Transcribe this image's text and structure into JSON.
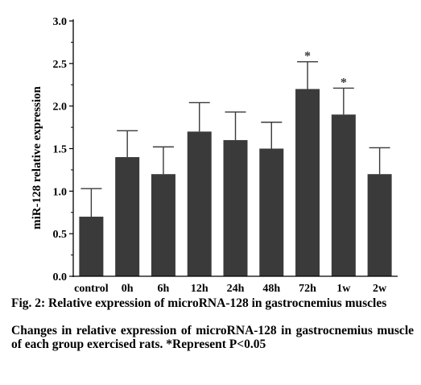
{
  "chart_data": {
    "type": "bar",
    "categories": [
      "control",
      "0h",
      "6h",
      "12h",
      "24h",
      "48h",
      "72h",
      "1w",
      "2w"
    ],
    "values": [
      0.7,
      1.4,
      1.2,
      1.7,
      1.6,
      1.5,
      2.2,
      1.9,
      1.2
    ],
    "error_upper": [
      1.03,
      1.71,
      1.52,
      2.04,
      1.93,
      1.81,
      2.52,
      2.21,
      1.51
    ],
    "significance": [
      "",
      "",
      "",
      "",
      "",
      "",
      "*",
      "*",
      ""
    ],
    "ylabel": "miR-128 relative expression",
    "xlabel": "",
    "ylim": [
      0,
      3.0
    ],
    "yticks": [
      "0.0",
      "0.5",
      "1.0",
      "1.5",
      "2.0",
      "2.5",
      "3.0"
    ],
    "grid": false,
    "bar_color": "#3a3a3a"
  },
  "caption": {
    "title": "Fig. 2: Relative expression of microRNA-128 in gastrocnemius muscles",
    "description": "Changes in relative expression of microRNA-128 in gastrocnemius muscle of each group exercised rats. *Represent P<0.05"
  }
}
